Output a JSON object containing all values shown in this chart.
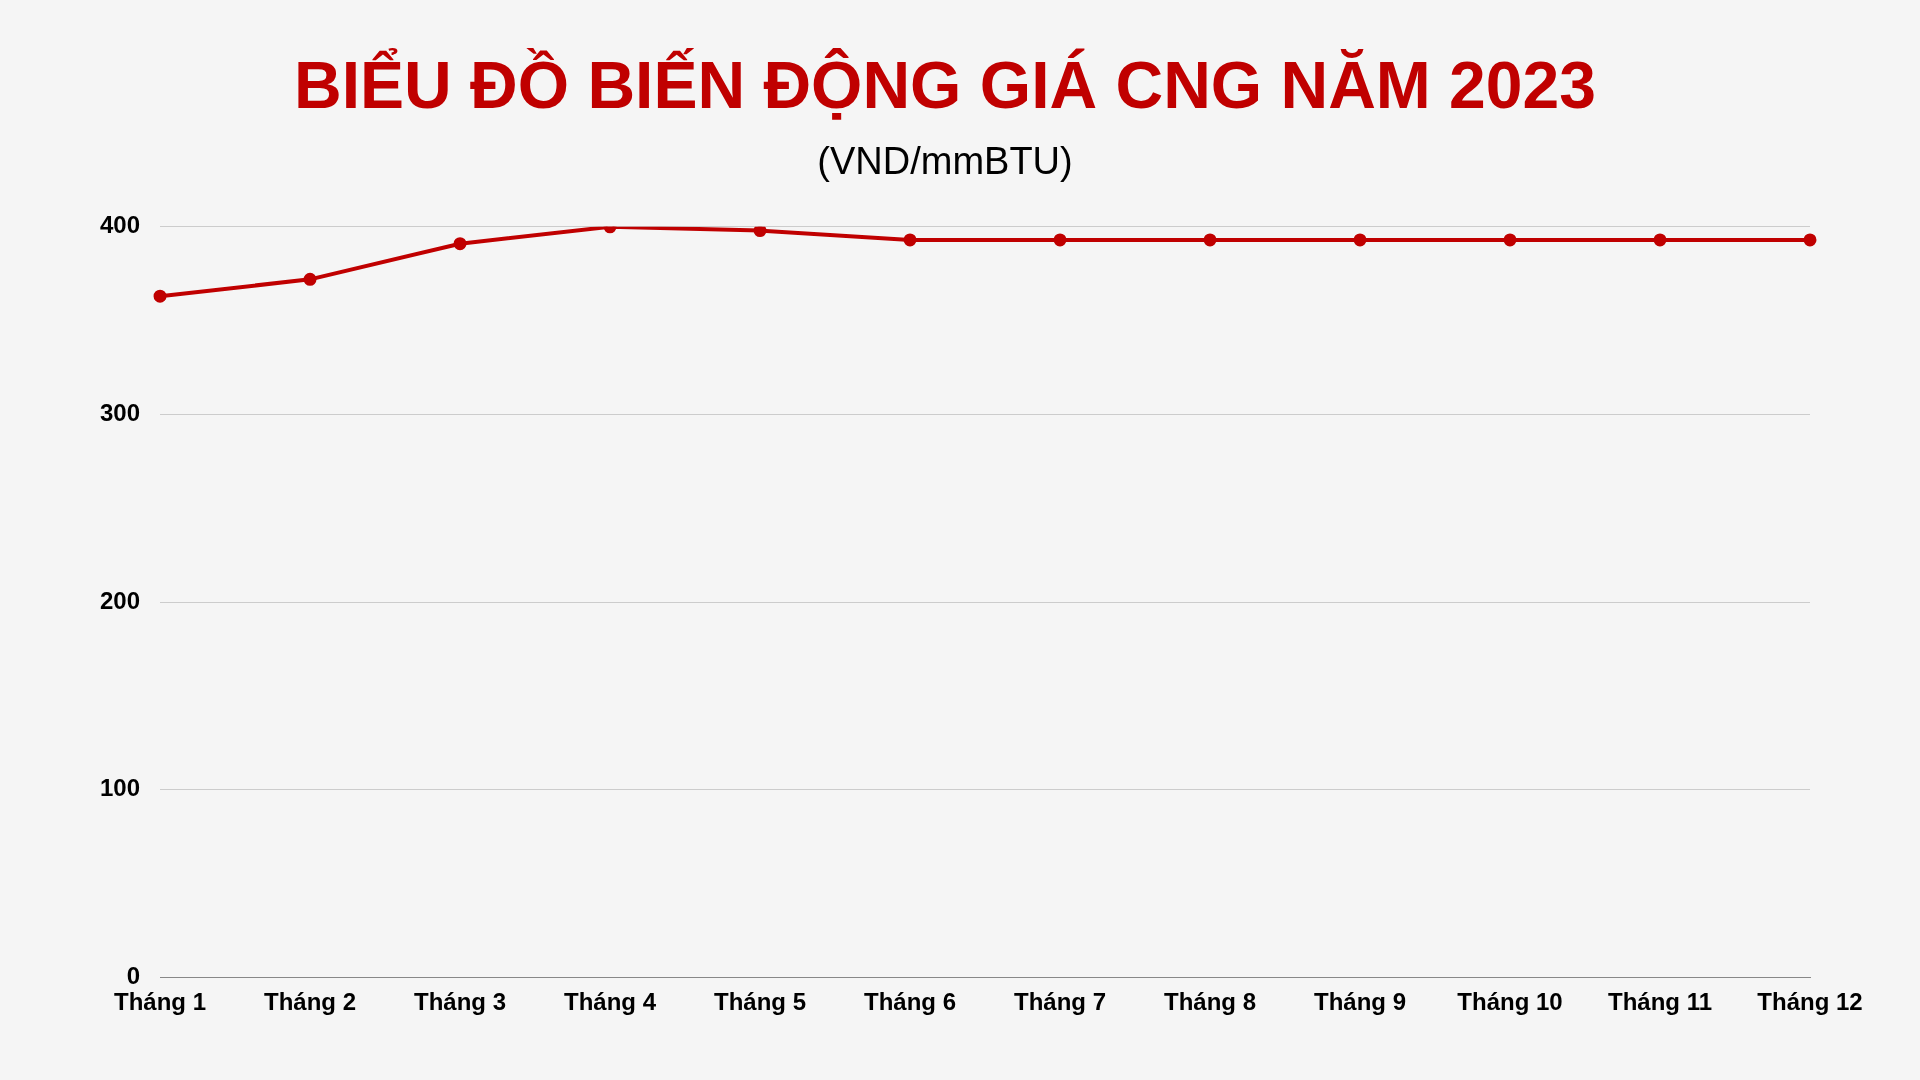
{
  "chart_data": {
    "type": "line",
    "title": "BIỂU ĐỒ BIẾN ĐỘNG GIÁ CNG NĂM 2023",
    "subtitle": "(VND/mmBTU)",
    "categories": [
      "Tháng 1",
      "Tháng 2",
      "Tháng 3",
      "Tháng 4",
      "Tháng 5",
      "Tháng 6",
      "Tháng 7",
      "Tháng 8",
      "Tháng 9",
      "Tháng 10",
      "Tháng 11",
      "Tháng 12"
    ],
    "series": [
      {
        "color": "#c00000",
        "values": [
          363,
          372,
          391,
          400,
          398,
          393,
          393,
          393,
          393,
          393,
          393,
          393
        ]
      }
    ],
    "ylim": [
      0,
      400
    ],
    "yticks": [
      0,
      100,
      200,
      300,
      400
    ],
    "grid": "y",
    "legend": false,
    "marker": "circle",
    "line_style": "solid"
  }
}
